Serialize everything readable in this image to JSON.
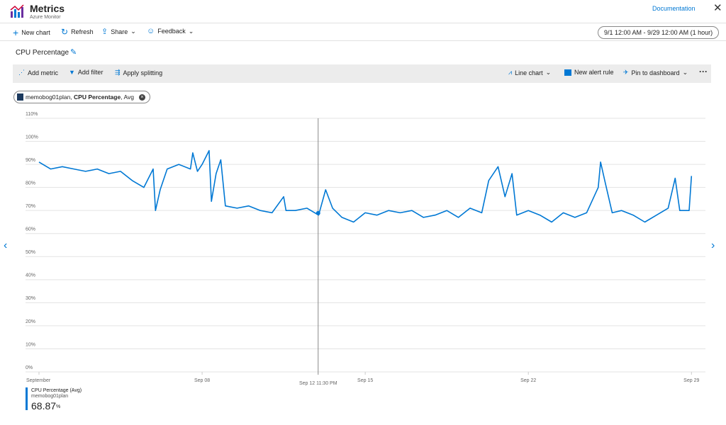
{
  "header": {
    "title": "Metrics",
    "subtitle": "Azure Monitor",
    "documentation": "Documentation"
  },
  "toolbar": {
    "items": [
      "New chart",
      "Refresh",
      "Share",
      "Feedback"
    ],
    "time_range": "9/1 12:00 AM - 9/29 12:00 AM (1 hour)"
  },
  "chart_toolbar": {
    "left": [
      "Add metric",
      "Add filter",
      "Apply splitting"
    ],
    "right": [
      "Line chart",
      "New alert rule",
      "Pin to dashboard"
    ]
  },
  "pill": {
    "resource": "memobog01plan, ",
    "metric": "CPU Percentage",
    "aggregation": ", Avg"
  },
  "legend": {
    "resource": "memobog01plan",
    "value": "68.87",
    "unit": "%"
  },
  "chart_data": {
    "type": "line",
    "title": "CPU Percentage",
    "x": [
      1,
      1.5,
      2,
      2.5,
      3,
      3.5,
      4,
      4.5,
      5,
      5.5,
      5.9,
      6.0,
      6.2,
      6.5,
      7,
      7.5,
      7.6,
      7.8,
      8,
      8.3,
      8.4,
      8.6,
      8.8,
      9,
      9.5,
      10,
      10.5,
      11,
      11.5,
      11.6,
      12,
      12.5,
      13,
      13.3,
      13.6,
      14,
      14.5,
      15,
      15.5,
      16,
      16.5,
      17,
      17.5,
      18,
      18.5,
      19,
      19.5,
      20,
      20.3,
      20.7,
      21,
      21.3,
      21.5,
      22,
      22.5,
      23,
      23.5,
      24,
      24.5,
      25,
      25.1,
      25.3,
      25.6,
      26,
      26.5,
      27,
      27.5,
      28,
      28.3,
      28.5,
      28.9,
      29
    ],
    "series": [
      {
        "name": "CPU Percentage (Avg)",
        "color": "#0078d4",
        "values": [
          91,
          88,
          89,
          88,
          87,
          88,
          86,
          87,
          83,
          80,
          88,
          70,
          79,
          88,
          90,
          88,
          95,
          87,
          90,
          96,
          74,
          86,
          92,
          72,
          71,
          72,
          70,
          69,
          76,
          70,
          70,
          71,
          68,
          79,
          71,
          67,
          65,
          69,
          68,
          70,
          69,
          70,
          67,
          68,
          70,
          67,
          71,
          69,
          83,
          89,
          76,
          86,
          68,
          70,
          68,
          65,
          69,
          67,
          69,
          80,
          91,
          82,
          69,
          70,
          68,
          65,
          68,
          71,
          84,
          70,
          70,
          85
        ]
      }
    ],
    "ylim": [
      0,
      110
    ],
    "yticks": [
      {
        "value": 0,
        "label": "0%"
      },
      {
        "value": 10,
        "label": "10%"
      },
      {
        "value": 20,
        "label": "20%"
      },
      {
        "value": 30,
        "label": "30%"
      },
      {
        "value": 40,
        "label": "40%"
      },
      {
        "value": 50,
        "label": "50%"
      },
      {
        "value": 60,
        "label": "60%"
      },
      {
        "value": 70,
        "label": "70%"
      },
      {
        "value": 80,
        "label": "80%"
      },
      {
        "value": 90,
        "label": "90%"
      },
      {
        "value": 100,
        "label": "100%"
      },
      {
        "value": 110,
        "label": "110%"
      }
    ],
    "xlim": [
      1,
      29.6
    ],
    "xticks": [
      {
        "value": 1,
        "label": "September"
      },
      {
        "value": 8,
        "label": "Sep 08"
      },
      {
        "value": 15,
        "label": "Sep 15"
      },
      {
        "value": 22,
        "label": "Sep 22"
      },
      {
        "value": 29,
        "label": "Sep 29"
      }
    ],
    "grid": true,
    "crosshair": {
      "x": 12.98,
      "value": 68.87,
      "label": "Sep 12 11:30 PM"
    }
  }
}
